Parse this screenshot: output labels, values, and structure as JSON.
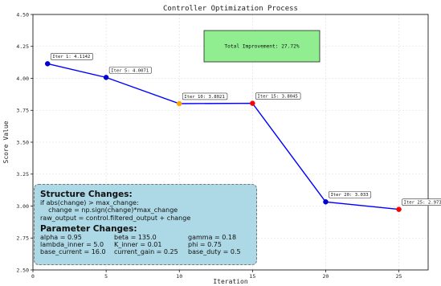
{
  "colors": {
    "line": "#0000ff",
    "point_default": "#0000cd",
    "point_mid": "#ffa500",
    "point_high": "#ff0000",
    "improvement_box": "#90ee90",
    "info_panel": "#add8e6"
  },
  "chart_data": {
    "type": "line",
    "title": "Controller Optimization Process",
    "xlabel": "Iteration",
    "ylabel": "Score Value",
    "xlim": [
      0,
      27
    ],
    "ylim": [
      2.5,
      4.5
    ],
    "xticks": [
      "0",
      "5",
      "10",
      "15",
      "20",
      "25"
    ],
    "yticks": [
      "2.50",
      "2.75",
      "3.00",
      "3.25",
      "3.50",
      "3.75",
      "4.00",
      "4.25",
      "4.50"
    ],
    "grid": true,
    "x": [
      1,
      5,
      10,
      15,
      20,
      25
    ],
    "y": [
      4.1142,
      4.0071,
      3.8021,
      3.8045,
      3.033,
      2.9739
    ],
    "point_colors": [
      "point_default",
      "point_default",
      "point_mid",
      "point_high",
      "point_default",
      "point_high"
    ],
    "annotations": [
      "Iter 1: 4.1142",
      "Iter 5: 4.0071",
      "Iter 10: 3.8021",
      "Iter 15: 3.8045",
      "Iter 20: 3.033",
      "Iter 25: 2.9739"
    ],
    "improvement_text": "Total Improvement: 27.72%"
  },
  "info_panel": {
    "structure_title": "Structure Changes:",
    "structure_lines": [
      "if abs(change) > max_change:",
      "    change = np.sign(change)*max_change",
      "raw_output = control.filtered_output + change"
    ],
    "parameter_title": "Parameter Changes:",
    "parameters": [
      "alpha = 0.95",
      "beta = 135.0",
      "gamma = 0.18",
      "lambda_inner = 5.0",
      "K_inner = 0.01",
      "phi = 0.75",
      "base_current = 16.0",
      "current_gain = 0.25",
      "base_duty = 0.5"
    ]
  }
}
